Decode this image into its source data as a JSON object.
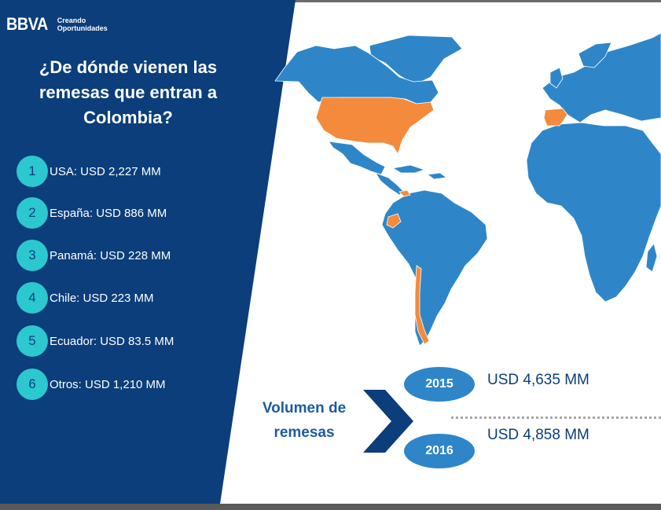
{
  "logo": {
    "brand": "BBVA",
    "tagline_line1": "Creando",
    "tagline_line2": "Oportunidades"
  },
  "title": {
    "line1": "¿De dónde vienen las",
    "line2": "remesas que entran a",
    "line3": "Colombia?"
  },
  "sources": [
    {
      "number": "1",
      "label": "USA: USD 2,227 MM"
    },
    {
      "number": "2",
      "label": "España: USD 886 MM"
    },
    {
      "number": "3",
      "label": "Panamá: USD 228 MM"
    },
    {
      "number": "4",
      "label": "Chile: USD 223 MM"
    },
    {
      "number": "5",
      "label": "Ecuador: USD 83.5 MM"
    },
    {
      "number": "6",
      "label": "Otros: USD 1,210 MM"
    }
  ],
  "volume": {
    "label_line1": "Volumen de",
    "label_line2": "remesas",
    "years": [
      {
        "year": "2015",
        "amount": "USD 4,635 MM"
      },
      {
        "year": "2016",
        "amount": "USD 4,858 MM"
      }
    ]
  },
  "colors": {
    "panel": "#0b3e7a",
    "badge": "#2cc8cf",
    "map": "#2e86c9",
    "highlight": "#f48a3c"
  },
  "map": {
    "highlighted_countries": [
      "USA",
      "España",
      "Panamá",
      "Chile",
      "Ecuador"
    ]
  }
}
